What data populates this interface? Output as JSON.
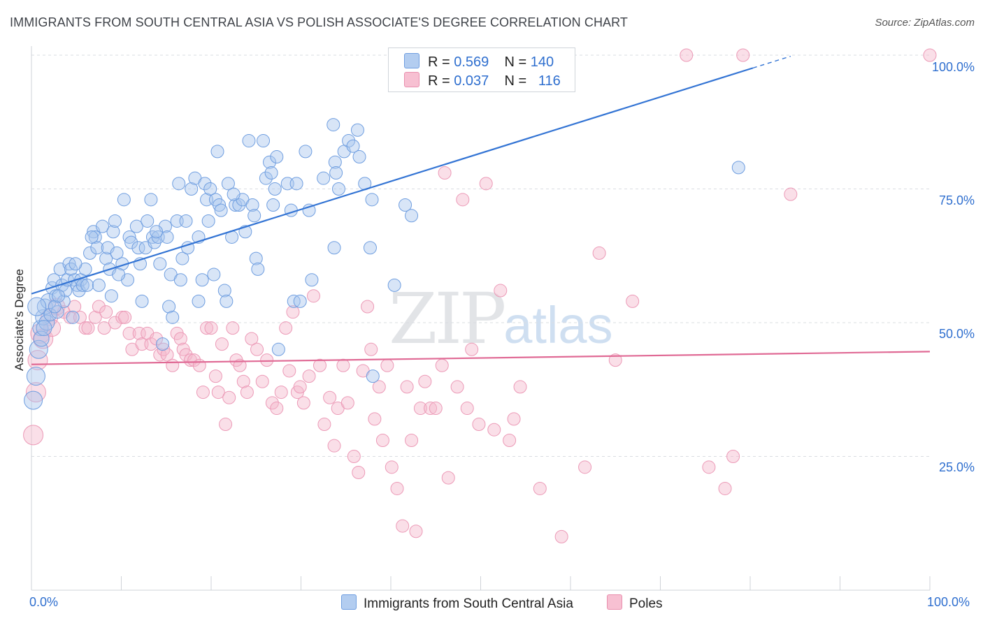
{
  "title": "IMMIGRANTS FROM SOUTH CENTRAL ASIA VS POLISH ASSOCIATE'S DEGREE CORRELATION CHART",
  "source": "Source: ZipAtlas.com",
  "watermark": {
    "zip": "ZIP",
    "atlas": "atlas"
  },
  "legend": {
    "r_label": "R =",
    "n_label": "N =",
    "rows": [
      {
        "r": "0.569",
        "n": "140",
        "fill": "#b3cdf0",
        "stroke": "#6f9ee0"
      },
      {
        "r": "0.037",
        "n": "116",
        "fill": "#f7c0d2",
        "stroke": "#e98fae"
      }
    ]
  },
  "bottom_legend": [
    "Immigrants from South Central Asia",
    "Poles"
  ],
  "colors": {
    "blue_line": "#3374d4",
    "pink_line": "#e06a95",
    "blue_point": "#6f9ee0",
    "pink_point": "#ec9ab7",
    "tick_label": "#2f6fcf"
  },
  "chart_data": {
    "type": "scatter",
    "title": "IMMIGRANTS FROM SOUTH CENTRAL ASIA VS POLISH ASSOCIATE'S DEGREE CORRELATION CHART",
    "xlabel": "",
    "ylabel": "Associate's Degree",
    "xlim": [
      0,
      100
    ],
    "ylim": [
      0,
      100
    ],
    "x_ticks": [
      "0.0%",
      "100.0%"
    ],
    "y_ticks": [
      "25.0%",
      "50.0%",
      "75.0%",
      "100.0%"
    ],
    "grid": "horizontal dashed",
    "legend_position": "top-center",
    "series": [
      {
        "name": "Immigrants from South Central Asia",
        "trend": {
          "x": [
            0,
            80.3
          ],
          "y": [
            55.4,
            97.6
          ],
          "dashed_to": [
            84.5,
            99.8
          ]
        },
        "points": [
          [
            0.2,
            35.5
          ],
          [
            0.5,
            40
          ],
          [
            0.8,
            45
          ],
          [
            1,
            49
          ],
          [
            1.1,
            47
          ],
          [
            1.3,
            51
          ],
          [
            1.5,
            53
          ],
          [
            1.7,
            50
          ],
          [
            1.9,
            54
          ],
          [
            2.1,
            51.5
          ],
          [
            2.3,
            56.5
          ],
          [
            2.5,
            58
          ],
          [
            2.7,
            55
          ],
          [
            2.9,
            52
          ],
          [
            3.2,
            60
          ],
          [
            3.4,
            57
          ],
          [
            3.6,
            54
          ],
          [
            3.8,
            56
          ],
          [
            4,
            58
          ],
          [
            4.2,
            61
          ],
          [
            4.4,
            60
          ],
          [
            4.6,
            51
          ],
          [
            4.8,
            58
          ],
          [
            5.1,
            57
          ],
          [
            5.3,
            56
          ],
          [
            5.5,
            58
          ],
          [
            5.7,
            57
          ],
          [
            6,
            60
          ],
          [
            6.2,
            57
          ],
          [
            6.5,
            63
          ],
          [
            6.9,
            67
          ],
          [
            7.1,
            66
          ],
          [
            7.3,
            64
          ],
          [
            7.5,
            57
          ],
          [
            7.9,
            68
          ],
          [
            8.3,
            62
          ],
          [
            8.5,
            64
          ],
          [
            8.7,
            60
          ],
          [
            8.9,
            55
          ],
          [
            9.1,
            67
          ],
          [
            9.3,
            69
          ],
          [
            9.5,
            63
          ],
          [
            10.1,
            61
          ],
          [
            10.3,
            73
          ],
          [
            10.7,
            58
          ],
          [
            10.9,
            66
          ],
          [
            11.1,
            65
          ],
          [
            11.7,
            68
          ],
          [
            11.9,
            64
          ],
          [
            12.3,
            54
          ],
          [
            12.7,
            64
          ],
          [
            12.9,
            69
          ],
          [
            13.3,
            73
          ],
          [
            13.5,
            66
          ],
          [
            13.7,
            65
          ],
          [
            14.1,
            66
          ],
          [
            14.3,
            61
          ],
          [
            14.6,
            46
          ],
          [
            14.9,
            68
          ],
          [
            15.1,
            66
          ],
          [
            15.3,
            53
          ],
          [
            15.5,
            59
          ],
          [
            15.7,
            51
          ],
          [
            16.2,
            69
          ],
          [
            16.4,
            76
          ],
          [
            16.8,
            62
          ],
          [
            17.2,
            69
          ],
          [
            17.4,
            64
          ],
          [
            17.8,
            75
          ],
          [
            18.2,
            77
          ],
          [
            18.6,
            66
          ],
          [
            18.6,
            54
          ],
          [
            19,
            58
          ],
          [
            19.3,
            76
          ],
          [
            19.5,
            73
          ],
          [
            19.9,
            75
          ],
          [
            20.3,
            59
          ],
          [
            20.5,
            73
          ],
          [
            20.7,
            82
          ],
          [
            20.9,
            72
          ],
          [
            21.1,
            71
          ],
          [
            21.5,
            56
          ],
          [
            21.7,
            54
          ],
          [
            21.9,
            76
          ],
          [
            22.3,
            66
          ],
          [
            22.7,
            72
          ],
          [
            23.1,
            72
          ],
          [
            23.5,
            73
          ],
          [
            23.8,
            67
          ],
          [
            24.2,
            84
          ],
          [
            24.6,
            72
          ],
          [
            25,
            62
          ],
          [
            25.2,
            60
          ],
          [
            25.8,
            84
          ],
          [
            26.1,
            77
          ],
          [
            26.5,
            80
          ],
          [
            26.9,
            72
          ],
          [
            27.1,
            75
          ],
          [
            27.3,
            81
          ],
          [
            27.5,
            45
          ],
          [
            28.5,
            76
          ],
          [
            29.2,
            54
          ],
          [
            29.5,
            76
          ],
          [
            29.9,
            54
          ],
          [
            30.5,
            82
          ],
          [
            30.9,
            71
          ],
          [
            32.5,
            77
          ],
          [
            33.6,
            87
          ],
          [
            33.7,
            64
          ],
          [
            33.8,
            80
          ],
          [
            33.9,
            78
          ],
          [
            34.8,
            82
          ],
          [
            35.3,
            84
          ],
          [
            35.8,
            83
          ],
          [
            36.3,
            86
          ],
          [
            36.5,
            81
          ],
          [
            37.9,
            73
          ],
          [
            37.7,
            64
          ],
          [
            38,
            40
          ],
          [
            40.4,
            57
          ],
          [
            41.6,
            72
          ],
          [
            42.3,
            70
          ],
          [
            78.7,
            79
          ],
          [
            0.6,
            53
          ],
          [
            2.6,
            53
          ],
          [
            1.4,
            49
          ],
          [
            3,
            55
          ],
          [
            4.9,
            61
          ],
          [
            6.7,
            66
          ],
          [
            9.7,
            59
          ],
          [
            12.1,
            61
          ],
          [
            13.9,
            67
          ],
          [
            16.6,
            58
          ],
          [
            19.7,
            69
          ],
          [
            22.5,
            74
          ],
          [
            24.8,
            70
          ],
          [
            26.7,
            78
          ],
          [
            28.9,
            71
          ],
          [
            31.2,
            58
          ],
          [
            34.2,
            75
          ],
          [
            37.1,
            76
          ]
        ]
      },
      {
        "name": "Poles",
        "trend": {
          "x": [
            0,
            100
          ],
          "y": [
            42.2,
            44.6
          ]
        },
        "points": [
          [
            0.2,
            29
          ],
          [
            0.5,
            37
          ],
          [
            0.7,
            43
          ],
          [
            1,
            48
          ],
          [
            1.3,
            47
          ],
          [
            2,
            51
          ],
          [
            2.3,
            49
          ],
          [
            2.8,
            53
          ],
          [
            3.6,
            52
          ],
          [
            4.3,
            51
          ],
          [
            4.8,
            53
          ],
          [
            5.4,
            51
          ],
          [
            6,
            49
          ],
          [
            6.3,
            49
          ],
          [
            7.1,
            51
          ],
          [
            7.5,
            53
          ],
          [
            8.1,
            49
          ],
          [
            8.3,
            52
          ],
          [
            9.3,
            50
          ],
          [
            10.1,
            51
          ],
          [
            10.4,
            51
          ],
          [
            10.9,
            48
          ],
          [
            11.2,
            45
          ],
          [
            12,
            48
          ],
          [
            12.3,
            46
          ],
          [
            12.9,
            48
          ],
          [
            13.3,
            46
          ],
          [
            13.9,
            47
          ],
          [
            14.3,
            44
          ],
          [
            14.7,
            45
          ],
          [
            15.1,
            44
          ],
          [
            15.7,
            42
          ],
          [
            16.2,
            48
          ],
          [
            16.6,
            47
          ],
          [
            16.9,
            45
          ],
          [
            17.2,
            44
          ],
          [
            17.7,
            43
          ],
          [
            18.1,
            43
          ],
          [
            18.7,
            42
          ],
          [
            19.1,
            37
          ],
          [
            19.5,
            49
          ],
          [
            20,
            49
          ],
          [
            20.5,
            40
          ],
          [
            20.8,
            37
          ],
          [
            21.2,
            46
          ],
          [
            21.6,
            31
          ],
          [
            22,
            36
          ],
          [
            22.4,
            49
          ],
          [
            22.8,
            43
          ],
          [
            23.2,
            42
          ],
          [
            23.6,
            39
          ],
          [
            24,
            37
          ],
          [
            24.5,
            47
          ],
          [
            25.1,
            45
          ],
          [
            25.7,
            39
          ],
          [
            26.2,
            43
          ],
          [
            26.8,
            35
          ],
          [
            27.3,
            34
          ],
          [
            27.8,
            37
          ],
          [
            28.3,
            49
          ],
          [
            28.7,
            41
          ],
          [
            29.1,
            52
          ],
          [
            29.6,
            37
          ],
          [
            29.9,
            38
          ],
          [
            30.3,
            35
          ],
          [
            30.9,
            40
          ],
          [
            31.4,
            55
          ],
          [
            32.1,
            42
          ],
          [
            32.6,
            31
          ],
          [
            33.2,
            36
          ],
          [
            33.7,
            27
          ],
          [
            34.1,
            34
          ],
          [
            34.7,
            42
          ],
          [
            35.2,
            35
          ],
          [
            35.9,
            25
          ],
          [
            36.4,
            22
          ],
          [
            36.9,
            41
          ],
          [
            37.4,
            53
          ],
          [
            37.8,
            45
          ],
          [
            38.2,
            32
          ],
          [
            38.7,
            38
          ],
          [
            39.1,
            28
          ],
          [
            39.6,
            42
          ],
          [
            40.1,
            23
          ],
          [
            40.7,
            19
          ],
          [
            41.3,
            12
          ],
          [
            41.8,
            38
          ],
          [
            42.3,
            28
          ],
          [
            42.8,
            11
          ],
          [
            43.3,
            34
          ],
          [
            43.8,
            39
          ],
          [
            44.4,
            34
          ],
          [
            45,
            34
          ],
          [
            45.7,
            42
          ],
          [
            46.4,
            21
          ],
          [
            47.4,
            38
          ],
          [
            48.5,
            34
          ],
          [
            49,
            45
          ],
          [
            49.8,
            31
          ],
          [
            50.6,
            76
          ],
          [
            51.5,
            30
          ],
          [
            52.2,
            56
          ],
          [
            53.2,
            28
          ],
          [
            53.7,
            32
          ],
          [
            54.4,
            38
          ],
          [
            56.6,
            19
          ],
          [
            59,
            10
          ],
          [
            61.6,
            23
          ],
          [
            63.2,
            63
          ],
          [
            65,
            43
          ],
          [
            66.9,
            54
          ],
          [
            72.9,
            100
          ],
          [
            75.4,
            23
          ],
          [
            77.2,
            19
          ],
          [
            78.1,
            25
          ],
          [
            79.2,
            100
          ],
          [
            84.5,
            74
          ],
          [
            100,
            100
          ],
          [
            46,
            78
          ],
          [
            48,
            73
          ]
        ]
      }
    ]
  }
}
